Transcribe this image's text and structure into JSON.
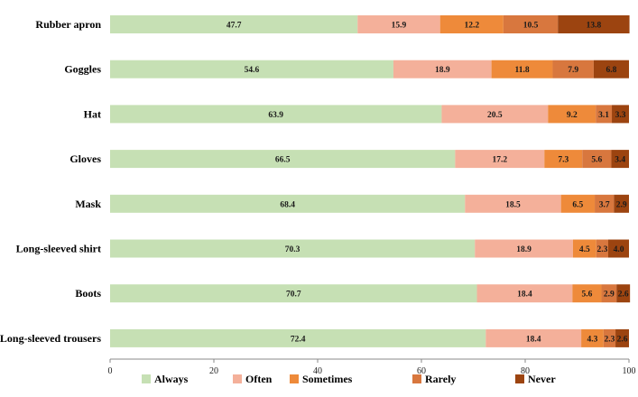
{
  "chart_data": {
    "type": "bar",
    "orientation": "horizontal",
    "stacked": true,
    "title": "",
    "xlabel": "",
    "ylabel": "",
    "xlim": [
      0,
      100
    ],
    "xticks": [
      0,
      20,
      40,
      60,
      80,
      100
    ],
    "grid": false,
    "legend_position": "bottom",
    "categories": [
      "Rubber apron",
      "Goggles",
      "Hat",
      "Gloves",
      "Mask",
      "Long-sleeved shirt",
      "Boots",
      "Long-sleeved trousers"
    ],
    "series": [
      {
        "name": "Always",
        "color": "#c6e0b4",
        "values": [
          47.7,
          54.6,
          63.9,
          66.5,
          68.4,
          70.3,
          70.7,
          72.4
        ],
        "labels": [
          "47.7",
          "54.6",
          "63.9",
          "66.5",
          "68.4",
          "70.3",
          "70.7",
          "72.4"
        ]
      },
      {
        "name": "Often",
        "color": "#f4b09a",
        "values": [
          15.9,
          18.9,
          20.5,
          17.2,
          18.5,
          18.9,
          18.4,
          18.4
        ],
        "labels": [
          "15.9",
          "18.9",
          "20.5",
          "17.2",
          "18.5",
          "18.9",
          "18.4",
          "18.4"
        ]
      },
      {
        "name": "Sometimes",
        "color": "#ee8a3a",
        "values": [
          12.2,
          11.8,
          9.2,
          7.3,
          6.5,
          4.5,
          5.6,
          4.3
        ],
        "labels": [
          "12.2",
          "11.8",
          "9.2",
          "7.3",
          "6.5",
          "4.5",
          "5.6",
          "4.3"
        ]
      },
      {
        "name": "Rarely",
        "color": "#d8773e",
        "values": [
          10.5,
          7.9,
          3.1,
          5.6,
          3.7,
          2.3,
          2.9,
          2.3
        ],
        "labels": [
          "10.5",
          "7.9",
          "3.1",
          "5.6",
          "3.7",
          "2.3",
          "2.9",
          "2.3"
        ]
      },
      {
        "name": "Never",
        "color": "#9c4410",
        "values": [
          13.8,
          6.8,
          3.3,
          3.4,
          2.9,
          4.0,
          2.6,
          2.6
        ],
        "labels": [
          "13.8",
          "6.8",
          "3.3",
          "3.4",
          "2.9",
          "4.0",
          "2.6",
          "2.6"
        ]
      }
    ]
  }
}
